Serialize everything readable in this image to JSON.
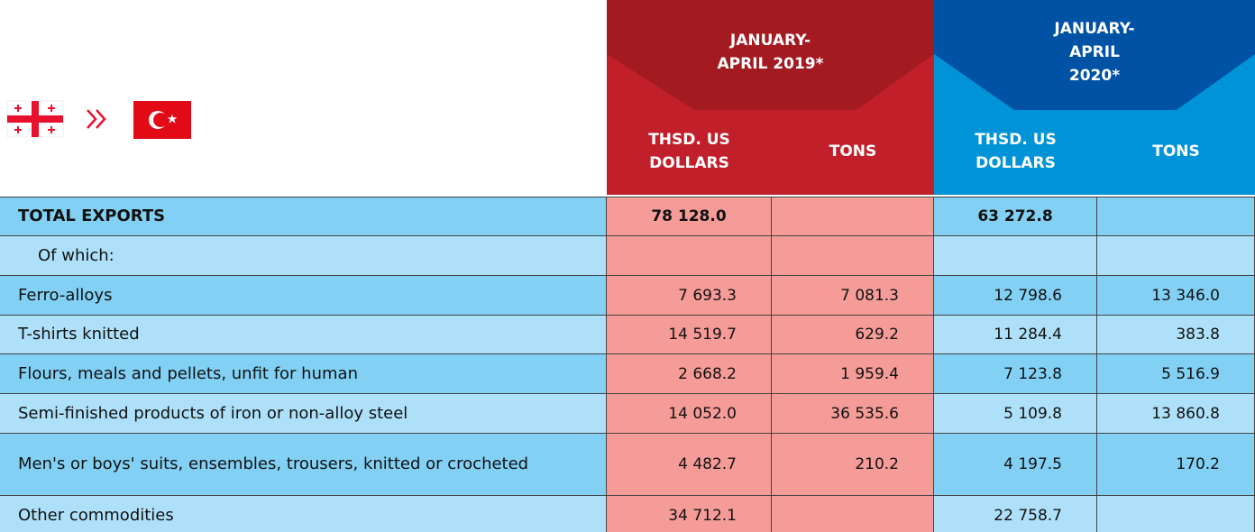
{
  "table": {
    "periods": [
      {
        "title": "JANUARY-APRIL 2019*",
        "columns": [
          "THSD. US DOLLARS",
          "TONS"
        ]
      },
      {
        "title": "JANUARY-APRIL 2020*",
        "columns": [
          "THSD. US DOLLARS",
          "TONS"
        ]
      }
    ],
    "rows": [
      [
        "TOTAL EXPORTS",
        "78 128.0",
        null,
        "63 272.8",
        null
      ],
      [
        "Of which:",
        null,
        null,
        null,
        null
      ],
      [
        "Ferro-alloys",
        "7 693.3",
        "7 081.3",
        "12 798.6",
        "13 346.0"
      ],
      [
        "T-shirts knitted",
        "14 519.7",
        "629.2",
        "11 284.4",
        "383.8"
      ],
      [
        "Flours, meals and pellets, unfit for human",
        "2 668.2",
        "1 959.4",
        "7 123.8",
        "5 516.9"
      ],
      [
        "Semi-finished products of iron or non-alloy steel",
        "14 052.0",
        "36 535.6",
        "5 109.8",
        "13 860.8"
      ],
      [
        "Men's or boys' suits, ensembles, trousers, knitted or crocheted",
        "4 482.7",
        "210.2",
        "4 197.5",
        "170.2"
      ],
      [
        "Other commodities",
        "34 712.1",
        null,
        "22 758.7",
        null
      ]
    ]
  }
}
